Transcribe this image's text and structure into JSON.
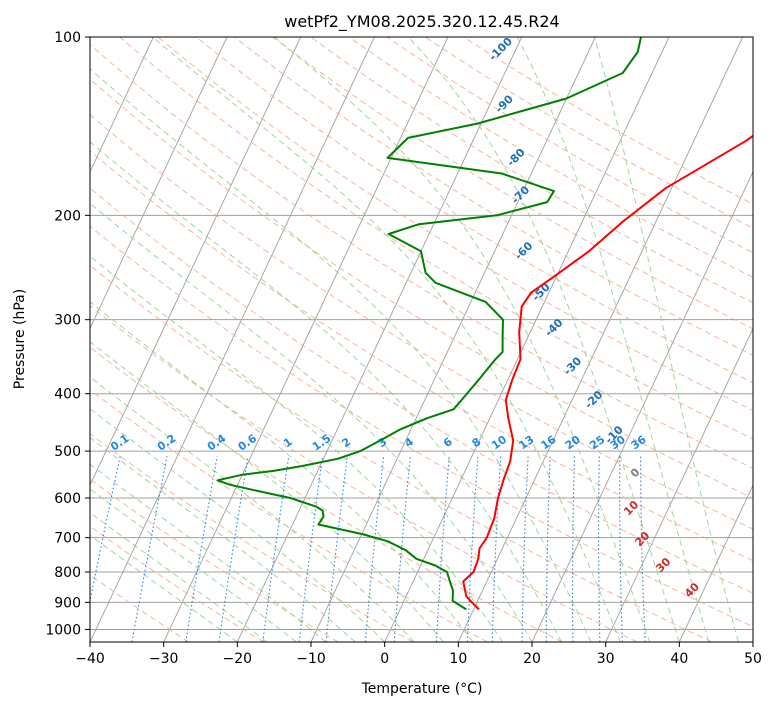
{
  "chart_data": {
    "type": "line",
    "title": "wetPf2_YM08.2025.320.12.45.R24",
    "xlabel": "Temperature (°C)",
    "ylabel": "Pressure (hPa)",
    "xlim": [
      -40,
      50
    ],
    "ylim": [
      1050,
      100
    ],
    "y_scale": "log",
    "grid": true,
    "x_ticks": [
      "−40",
      "−30",
      "−20",
      "−10",
      "0",
      "10",
      "20",
      "30",
      "40",
      "50"
    ],
    "y_ticks": [
      {
        "p": 100,
        "label": "100"
      },
      {
        "p": 200,
        "label": "200"
      },
      {
        "p": 300,
        "label": "300"
      },
      {
        "p": 400,
        "label": "400"
      },
      {
        "p": 500,
        "label": "500"
      },
      {
        "p": 600,
        "label": "600"
      },
      {
        "p": 700,
        "label": "700"
      },
      {
        "p": 800,
        "label": "800"
      },
      {
        "p": 900,
        "label": "900"
      },
      {
        "p": 1000,
        "label": "1000"
      }
    ],
    "series": [
      {
        "color": "#ff0000",
        "points": [
          [
            10.7,
            925
          ],
          [
            8.2,
            880
          ],
          [
            6.8,
            830
          ],
          [
            7.6,
            800
          ],
          [
            7.4,
            760
          ],
          [
            6.9,
            730
          ],
          [
            7.2,
            700
          ],
          [
            7.0,
            650
          ],
          [
            6.2,
            600
          ],
          [
            5.8,
            560
          ],
          [
            5.5,
            520
          ],
          [
            4.6,
            480
          ],
          [
            2.5,
            440
          ],
          [
            1.0,
            410
          ],
          [
            0.6,
            380
          ],
          [
            0.4,
            350
          ],
          [
            -1.5,
            315
          ],
          [
            -2.8,
            285
          ],
          [
            -2.4,
            270
          ],
          [
            -0.5,
            255
          ],
          [
            2.8,
            230
          ],
          [
            5.5,
            205
          ],
          [
            9.2,
            180
          ],
          [
            17.0,
            150
          ],
          [
            24.5,
            120
          ],
          [
            31.5,
            100
          ]
        ]
      },
      {
        "color": "#008000",
        "points": [
          [
            9.0,
            925
          ],
          [
            6.6,
            895
          ],
          [
            6.0,
            860
          ],
          [
            5.0,
            830
          ],
          [
            4.0,
            800
          ],
          [
            2.0,
            780
          ],
          [
            -1.0,
            760
          ],
          [
            -3.0,
            735
          ],
          [
            -6.0,
            710
          ],
          [
            -10.0,
            690
          ],
          [
            -16.5,
            665
          ],
          [
            -16.3,
            645
          ],
          [
            -16.8,
            630
          ],
          [
            -18.0,
            620
          ],
          [
            -22.0,
            600
          ],
          [
            -26.5,
            585
          ],
          [
            -31.0,
            570
          ],
          [
            -33.0,
            560
          ],
          [
            -30.0,
            548
          ],
          [
            -26.0,
            540
          ],
          [
            -22.5,
            530
          ],
          [
            -18.0,
            515
          ],
          [
            -15.5,
            500
          ],
          [
            -13.5,
            480
          ],
          [
            -11.5,
            460
          ],
          [
            -8.5,
            440
          ],
          [
            -5.5,
            425
          ],
          [
            -5.0,
            410
          ],
          [
            -4.0,
            380
          ],
          [
            -3.0,
            350
          ],
          [
            -2.5,
            340
          ],
          [
            -3.5,
            320
          ],
          [
            -4.5,
            300
          ],
          [
            -8.0,
            280
          ],
          [
            -16.0,
            260
          ],
          [
            -18.0,
            250
          ],
          [
            -20.0,
            230
          ],
          [
            -25.5,
            215
          ],
          [
            -22.0,
            207
          ],
          [
            -12.0,
            200
          ],
          [
            -6.0,
            190
          ],
          [
            -5.8,
            182
          ],
          [
            -14.0,
            170
          ],
          [
            -30.5,
            160
          ],
          [
            -29.0,
            148
          ],
          [
            -20.5,
            140
          ],
          [
            -10.0,
            127
          ],
          [
            -4.0,
            115
          ],
          [
            -3.3,
            106
          ],
          [
            -3.8,
            100
          ]
        ]
      }
    ],
    "dry_adiabat_labels": [
      "-100",
      "-90",
      "-80",
      "-70",
      "-60",
      "-50",
      "-40",
      "-30",
      "-20",
      "-10"
    ],
    "mixing_ratio_labels": [
      "0.1",
      "0.2",
      "0.4",
      "0.6",
      "1",
      "1.5",
      "2",
      "3",
      "4",
      "6",
      "8",
      "10",
      "13",
      "16",
      "20",
      "25",
      "30",
      "36"
    ],
    "moist_adiabat_labels": [
      "0",
      "10",
      "20",
      "30",
      "40"
    ],
    "colors": {
      "temperature": "#ff0000",
      "dewpoint": "#008000",
      "isotherm": "#a0a0a0",
      "dry_adiabat": "#f4a582",
      "moist_adiabat": "#8fcf8f",
      "mixing_ratio": "#1e88e5",
      "label_blue": "#1f6fb5",
      "label_red": "#d62728"
    }
  }
}
